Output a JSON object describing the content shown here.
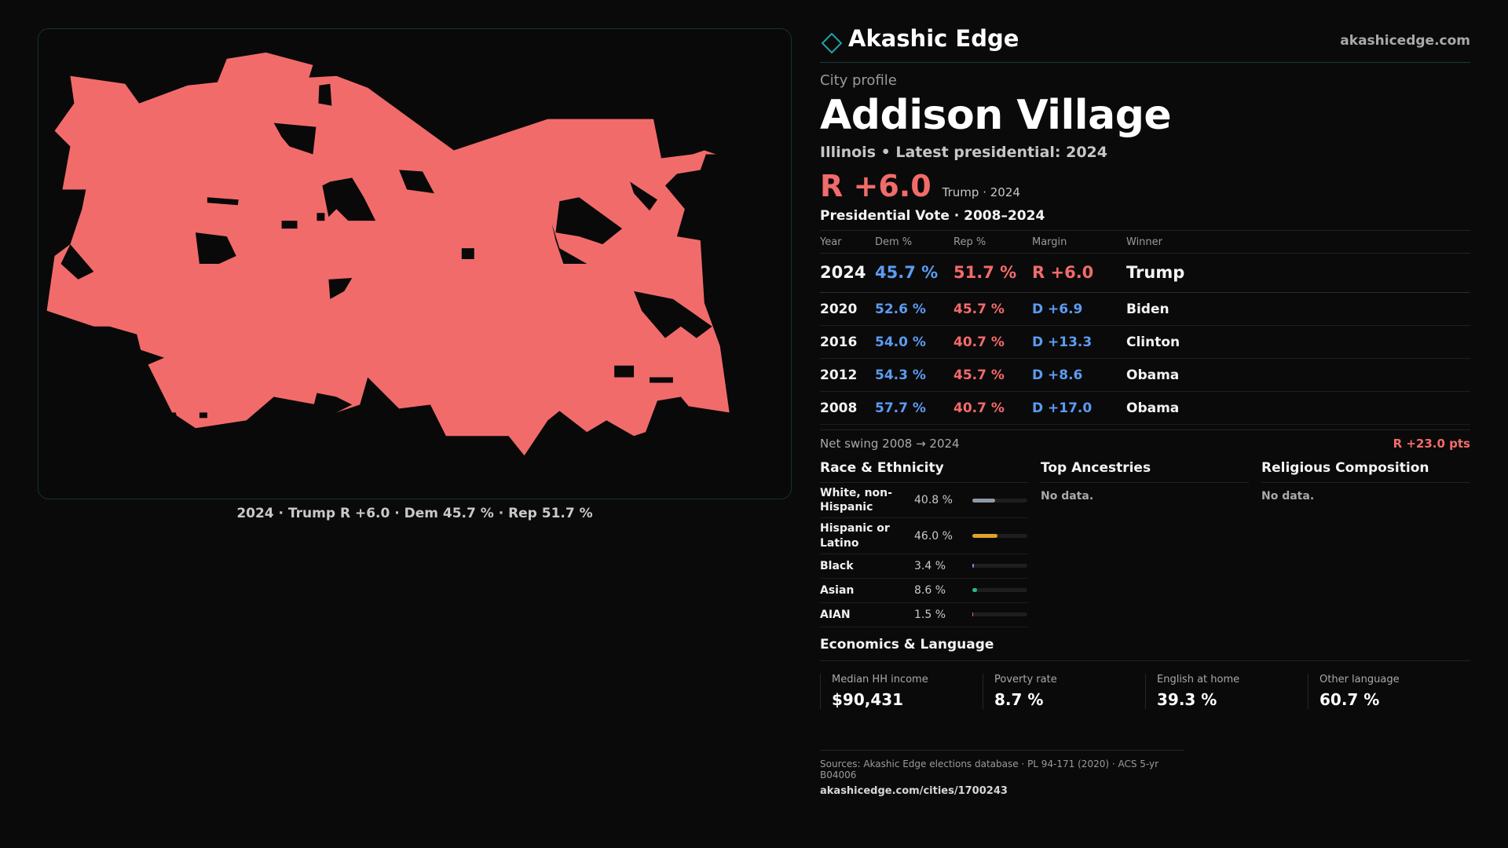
{
  "brand": {
    "name": "Akashic Edge",
    "url": "akashicedge.com"
  },
  "profile": {
    "eyebrow": "City profile",
    "name": "Addison Village",
    "subline": "Illinois • Latest presidential: 2024",
    "margin_big": "R +6.0",
    "margin_note": "Trump · 2024"
  },
  "map": {
    "caption": "2024 · Trump  R +6.0 · Dem 45.7 % · Rep 51.7 %",
    "fill_color": "#f26b6b"
  },
  "votes": {
    "title": "Presidential Vote · 2008–2024",
    "headers": {
      "year": "Year",
      "dem": "Dem %",
      "rep": "Rep %",
      "margin": "Margin",
      "winner": "Winner"
    },
    "rows": [
      {
        "year": "2024",
        "dem": "45.7 %",
        "rep": "51.7 %",
        "margin": "R +6.0",
        "party": "rep",
        "winner": "Trump"
      },
      {
        "year": "2020",
        "dem": "52.6 %",
        "rep": "45.7 %",
        "margin": "D +6.9",
        "party": "dem",
        "winner": "Biden"
      },
      {
        "year": "2016",
        "dem": "54.0 %",
        "rep": "40.7 %",
        "margin": "D +13.3",
        "party": "dem",
        "winner": "Clinton"
      },
      {
        "year": "2012",
        "dem": "54.3 %",
        "rep": "45.7 %",
        "margin": "D +8.6",
        "party": "dem",
        "winner": "Obama"
      },
      {
        "year": "2008",
        "dem": "57.7 %",
        "rep": "40.7 %",
        "margin": "D +17.0",
        "party": "dem",
        "winner": "Obama"
      }
    ],
    "swing_label": "Net swing 2008 → 2024",
    "swing_value": "R +23.0 pts"
  },
  "race": {
    "title": "Race & Ethnicity",
    "rows": [
      {
        "name": "White, non-Hispanic",
        "pct": "40.8 %",
        "value": 40.8,
        "color": "#8e98a8"
      },
      {
        "name": "Hispanic or Latino",
        "pct": "46.0 %",
        "value": 46.0,
        "color": "#e2a12a"
      },
      {
        "name": "Black",
        "pct": "3.4 %",
        "value": 3.4,
        "color": "#8f7ee6"
      },
      {
        "name": "Asian",
        "pct": "8.6 %",
        "value": 8.6,
        "color": "#2fb887"
      },
      {
        "name": "AIAN",
        "pct": "1.5 %",
        "value": 1.5,
        "color": "#d9794a"
      }
    ]
  },
  "ancestries": {
    "title": "Top Ancestries",
    "empty": "No data."
  },
  "religion": {
    "title": "Religious Composition",
    "empty": "No data."
  },
  "economics": {
    "title": "Economics & Language",
    "cells": [
      {
        "label": "Median HH income",
        "value": "$90,431"
      },
      {
        "label": "Poverty rate",
        "value": "8.7 %"
      },
      {
        "label": "English at home",
        "value": "39.3 %"
      },
      {
        "label": "Other language",
        "value": "60.7 %"
      }
    ]
  },
  "footer": {
    "sources": "Sources: Akashic Edge elections database · PL 94-171 (2020) · ACS 5-yr B04006",
    "url": "akashicedge.com/cities/1700243"
  },
  "colors": {
    "dem": "#5b9cf2",
    "rep": "#f26b6b",
    "accent": "#1fa3a8"
  }
}
